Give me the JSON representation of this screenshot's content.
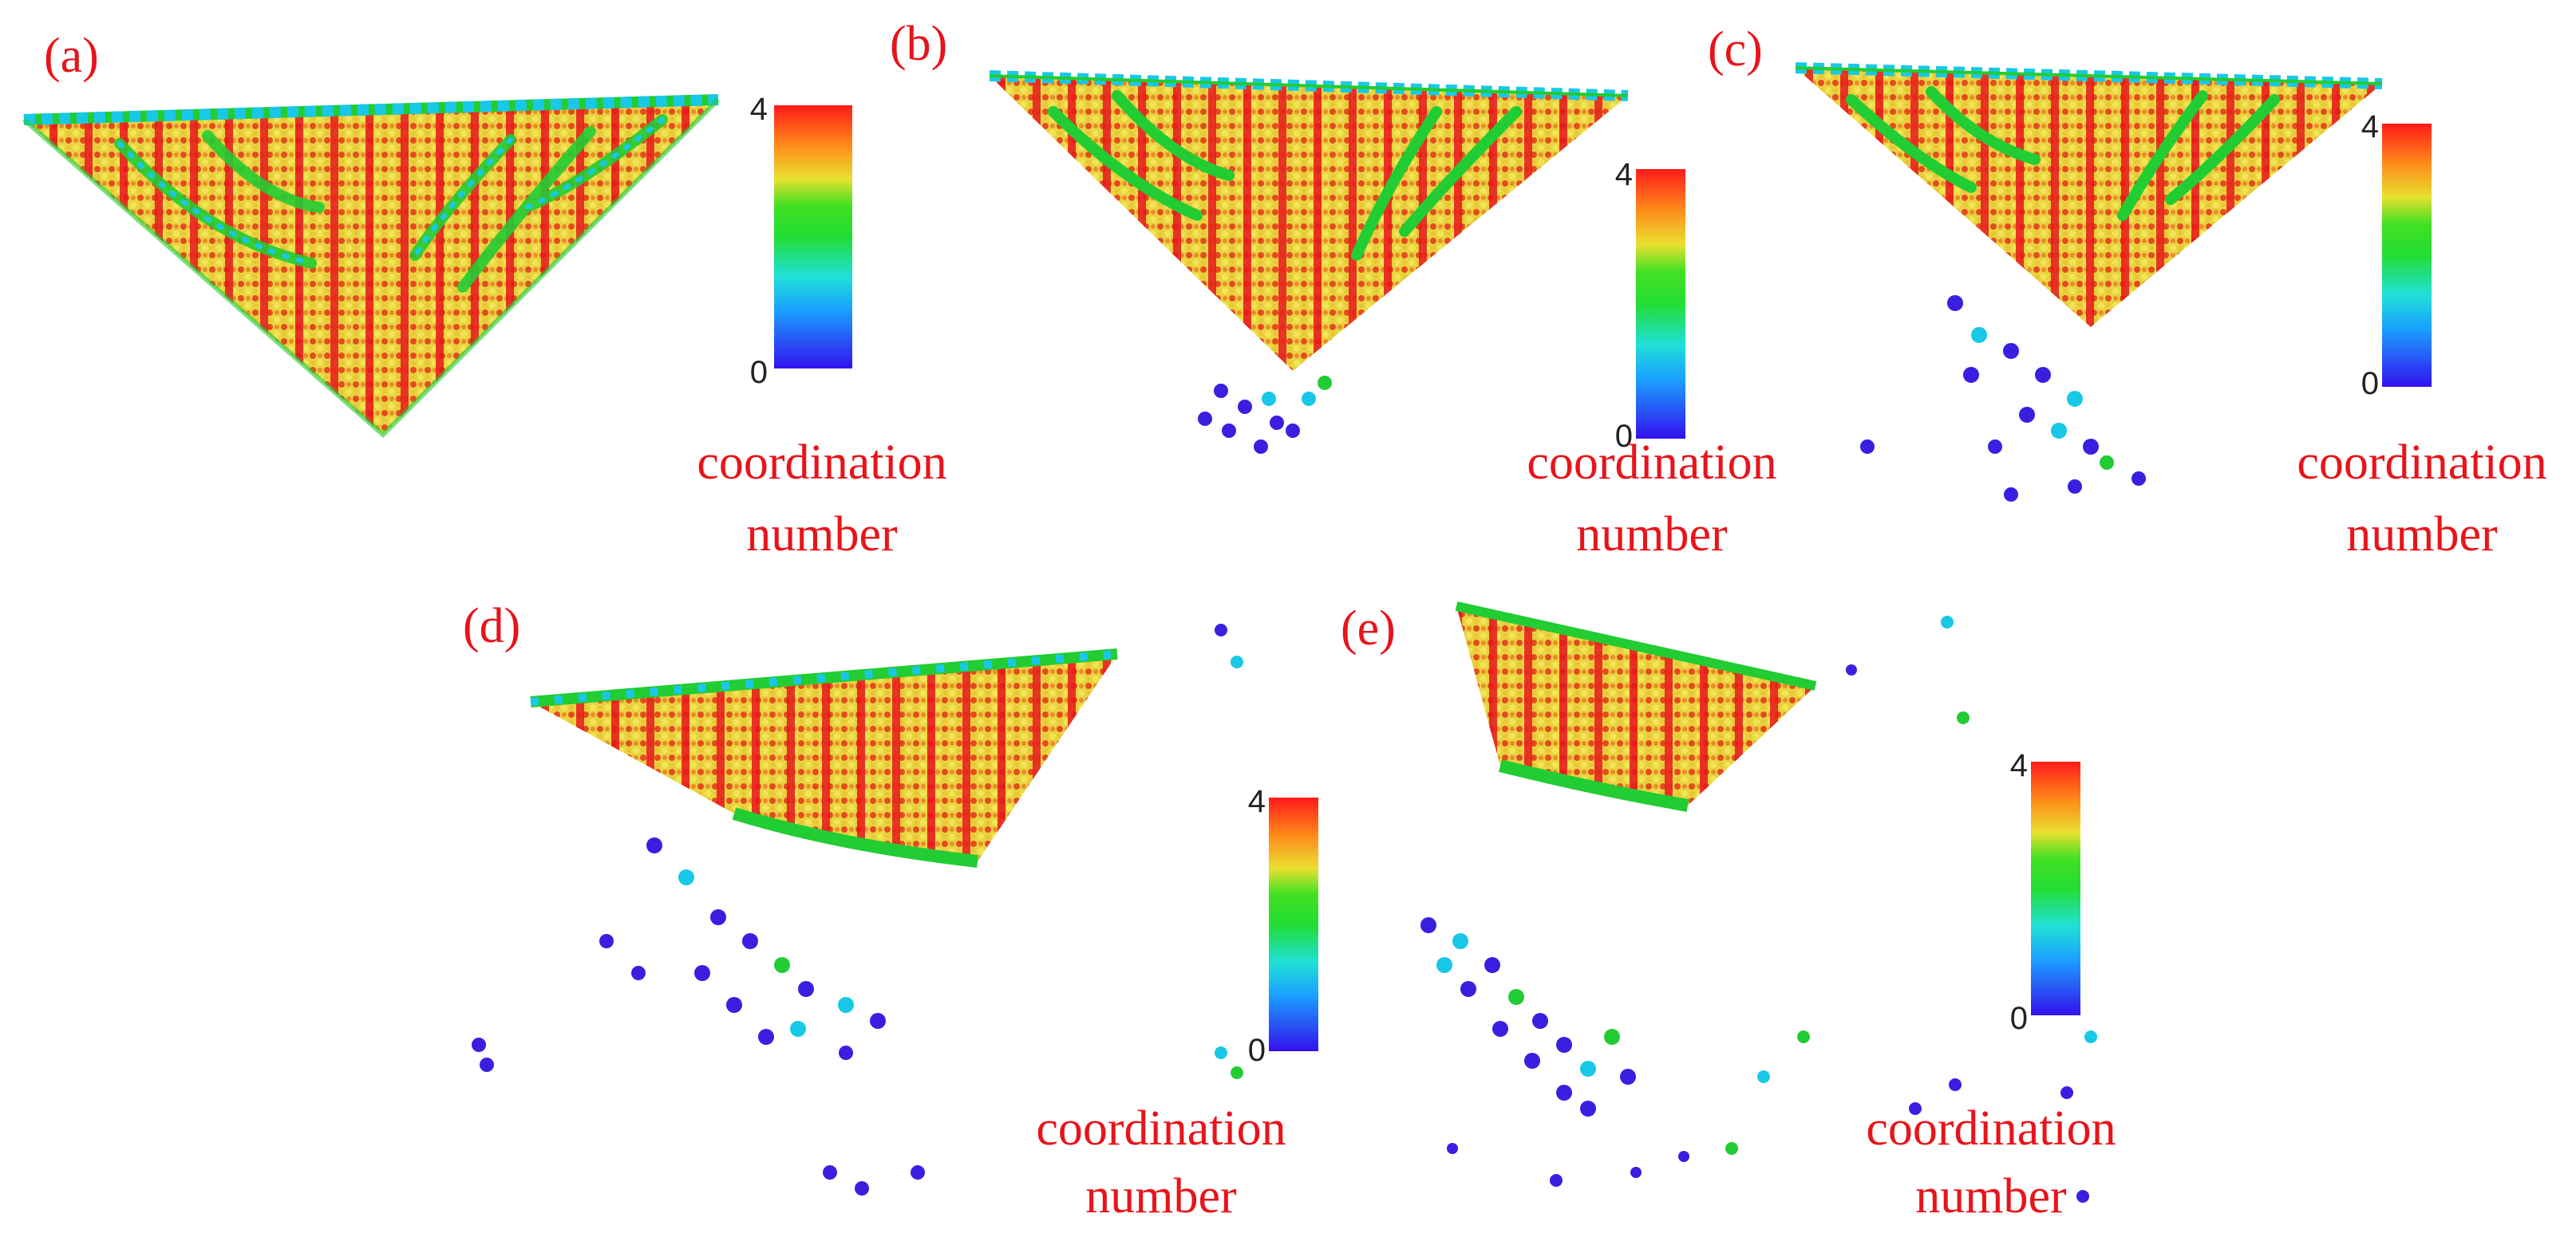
{
  "figure": {
    "panels": [
      {
        "label": "(a)",
        "colorbar": {
          "max_label": "4",
          "min_label": "0",
          "title_line1": "coordination",
          "title_line2": "number"
        }
      },
      {
        "label": "(b)",
        "colorbar": {
          "max_label": "4",
          "min_label": "0",
          "title_line1": "coordination",
          "title_line2": "number"
        }
      },
      {
        "label": "(c)",
        "colorbar": {
          "max_label": "4",
          "min_label": "0",
          "title_line1": "coordination",
          "title_line2": "number"
        }
      },
      {
        "label": "(d)",
        "colorbar": {
          "max_label": "4",
          "min_label": "0",
          "title_line1": "coordination",
          "title_line2": "number"
        }
      },
      {
        "label": "(e)",
        "colorbar": {
          "max_label": "4",
          "min_label": "0",
          "title_line1": "coordination",
          "title_line2": "number"
        }
      }
    ],
    "colors": {
      "label_red": "#e8141b",
      "coord_0": "#3a1fe0",
      "coord_1": "#19c8e6",
      "coord_2": "#22cc22",
      "coord_3": "#e6e03a",
      "coord_4": "#e8161b"
    }
  }
}
